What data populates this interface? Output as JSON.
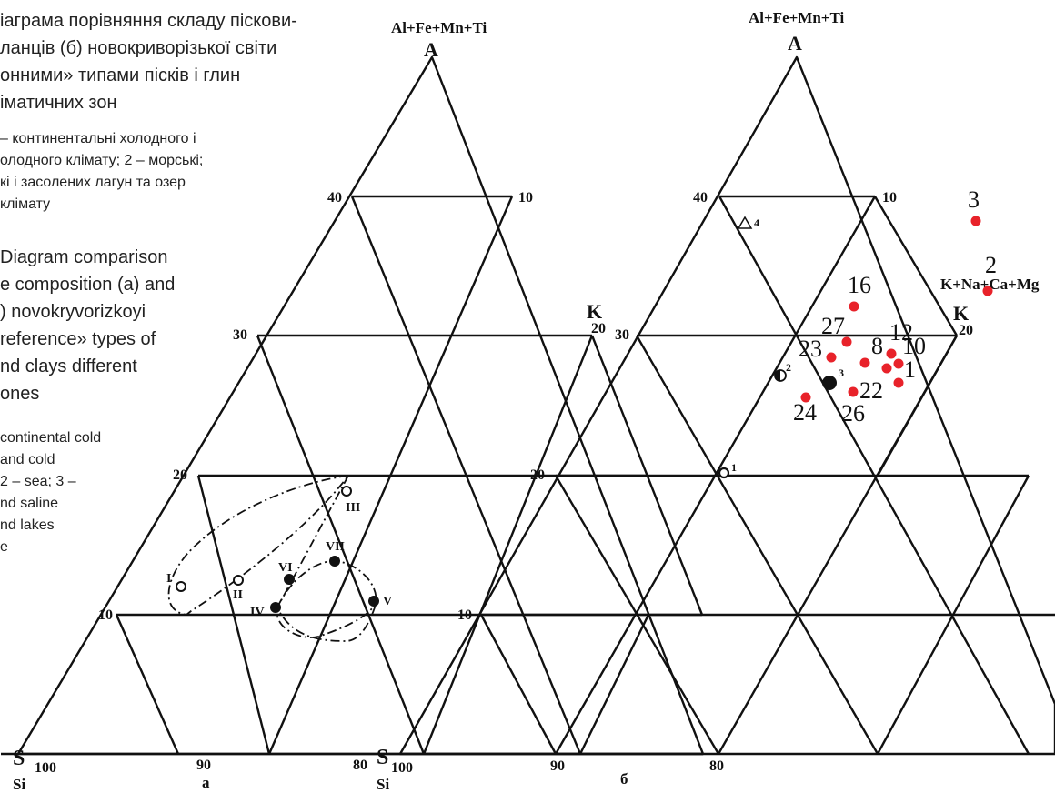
{
  "caption": {
    "ua_title": [
      "іаграма порівняння складу піскови-",
      "ланців (б) новокриворізької світи",
      "онними» типами пісків і глин",
      "іматичних зон"
    ],
    "ua_legend": [
      "– континентальні холодного і",
      "олодного клімату; 2 – морські;",
      "кі і засолених лагун та озер",
      "клімату"
    ],
    "en_title": [
      "Diagram   comparison",
      "e composition (a) and",
      ")   novokryvorizkoyi",
      "reference» types of",
      "nd clays different",
      "ones"
    ],
    "en_legend": [
      "continental cold",
      "     and     cold",
      "2 – sea; 3 –",
      "nd    saline",
      "nd lakes",
      "e"
    ]
  },
  "diagram_a": {
    "apex_formula": "Al+Fe+Mn+Ti",
    "apex_letter": "A",
    "right_letter": "K",
    "right_value": "20",
    "left_letter": "S",
    "left_value": "100",
    "left_sub": "Si",
    "left_ticks": [
      "40",
      "30",
      "20",
      "10"
    ],
    "top_right_tick": "10",
    "bottom_ticks": [
      "90",
      "80"
    ],
    "panel_label": "а",
    "points": [
      {
        "label": "I",
        "fill": "open"
      },
      {
        "label": "II",
        "fill": "open"
      },
      {
        "label": "III",
        "fill": "open"
      },
      {
        "label": "IV",
        "fill": "solid"
      },
      {
        "label": "V",
        "fill": "solid"
      },
      {
        "label": "VI",
        "fill": "solid"
      },
      {
        "label": "VII",
        "fill": "solid"
      }
    ]
  },
  "diagram_b": {
    "apex_formula": "Al+Fe+Mn+Ti",
    "apex_letter": "A",
    "right_letter": "K",
    "right_value": "20",
    "right_formula": "K+Na+Ca+Mg",
    "left_letter": "S",
    "left_value": "100",
    "left_sub": "Si",
    "left_ticks": [
      "40",
      "30",
      "20",
      "10"
    ],
    "top_right_tick": "10",
    "bottom_ticks": [
      "90",
      "80"
    ],
    "panel_label": "б",
    "reference_points": [
      {
        "label": "1",
        "marker": "open-circle"
      },
      {
        "label": "2",
        "marker": "half-circle"
      },
      {
        "label": "3",
        "marker": "solid-circle"
      },
      {
        "label": "4",
        "marker": "triangle"
      }
    ],
    "samples": [
      "3",
      "2",
      "16",
      "27",
      "12",
      "23",
      "8",
      "10",
      "1",
      "22",
      "24",
      "26"
    ],
    "sample_color": "#e8222a"
  }
}
